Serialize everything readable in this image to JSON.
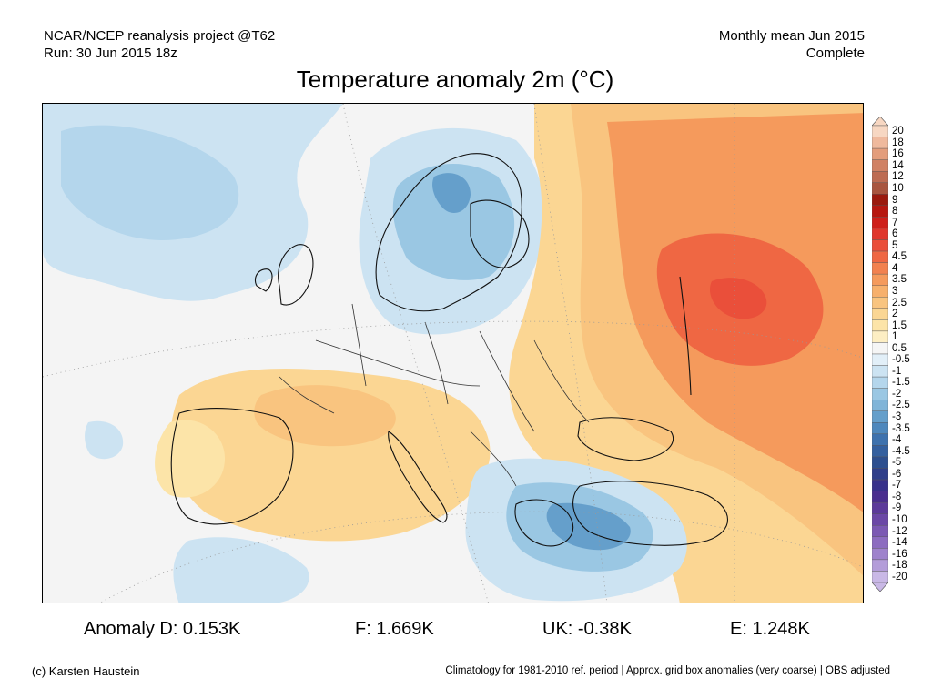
{
  "header": {
    "left_line1": "NCAR/NCEP reanalysis project @T62",
    "left_line2": "Run: 30 Jun 2015 18z",
    "right_line1": "Monthly mean Jun 2015",
    "right_line2": "Complete"
  },
  "title": "Temperature anomaly 2m (°C)",
  "colorbar": {
    "labels": [
      "20",
      "18",
      "16",
      "14",
      "12",
      "10",
      "9",
      "8",
      "7",
      "6",
      "5",
      "4.5",
      "4",
      "3.5",
      "3",
      "2.5",
      "2",
      "1.5",
      "1",
      "0.5",
      "-0.5",
      "-1",
      "-1.5",
      "-2",
      "-2.5",
      "-3",
      "-3.5",
      "-4",
      "-4.5",
      "-5",
      "-6",
      "-7",
      "-8",
      "-9",
      "-10",
      "-12",
      "-14",
      "-16",
      "-18",
      "-20"
    ],
    "colors": [
      "#f7d7c2",
      "#efb99d",
      "#e39d7c",
      "#d08164",
      "#bd6b52",
      "#a8553f",
      "#9b1a0e",
      "#b71710",
      "#cf1f1a",
      "#e0362c",
      "#ea4f3a",
      "#ef6743",
      "#f2814f",
      "#f59a5c",
      "#f7b06c",
      "#f9c47f",
      "#fbd693",
      "#fce4a8",
      "#fdeec3",
      "#f5f5f5",
      "#e2eff8",
      "#cce3f2",
      "#b4d6ec",
      "#9ac7e3",
      "#7fb4d8",
      "#659fcb",
      "#4e88bd",
      "#3e72ae",
      "#34609f",
      "#2d4f8f",
      "#2f3f8a",
      "#38318a",
      "#4a2e8f",
      "#5c3a9a",
      "#6b48a6",
      "#7b59b3",
      "#8c6cc0",
      "#9e82cc",
      "#b39cd9",
      "#c9b8e6"
    ]
  },
  "stats": {
    "anomaly_d": "Anomaly D: 0.153K",
    "f": "F: 1.669K",
    "uk": "UK: -0.38K",
    "e": "E: 1.248K"
  },
  "footer": {
    "left": "(c) Karsten Haustein",
    "right": "Climatology for 1981-2010 ref. period | Approx. grid box anomalies (very coarse) | OBS adjusted"
  },
  "colors": {
    "warm": "#f7b06c",
    "hot": "#ef6743",
    "cool": "#b4d6ec",
    "cold": "#659fcb"
  }
}
